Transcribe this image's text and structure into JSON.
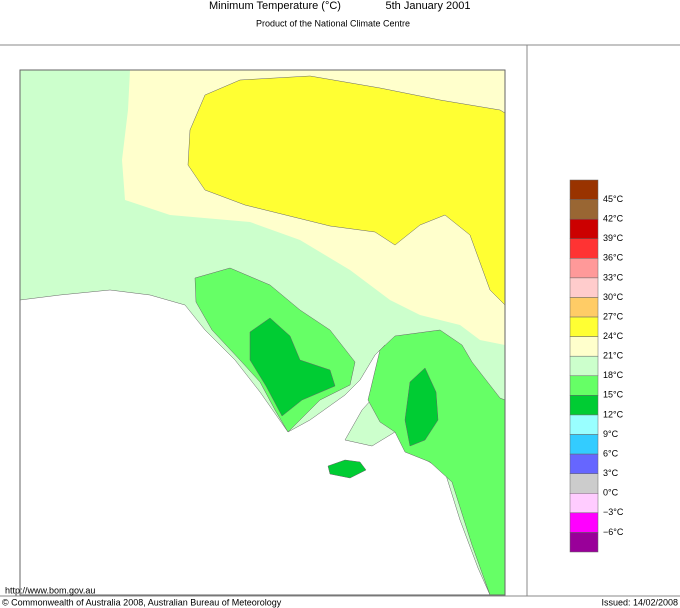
{
  "header": {
    "title": "Minimum Temperature (°C)",
    "date": "5th January 2001",
    "subtitle": "Product of the National Climate Centre"
  },
  "legend": {
    "colors": [
      "#993300",
      "#996633",
      "#cc0000",
      "#ff3333",
      "#ff9999",
      "#ffcccc",
      "#ffcc66",
      "#ffff33",
      "#ffffcc",
      "#ccffcc",
      "#66ff66",
      "#00cc33",
      "#99ffff",
      "#33ccff",
      "#6666ff",
      "#cccccc",
      "#ffccff",
      "#ff00ff",
      "#990099"
    ],
    "labels": [
      "45°C",
      "42°C",
      "39°C",
      "36°C",
      "33°C",
      "30°C",
      "27°C",
      "24°C",
      "21°C",
      "18°C",
      "15°C",
      "12°C",
      "9°C",
      "6°C",
      "3°C",
      "0°C",
      "−3°C",
      "−6°C"
    ]
  },
  "footer": {
    "url": "http://www.bom.gov.au",
    "copyright": "© Commonwealth of Australia 2008, Australian Bureau of Meteorology",
    "issued": "Issued: 14/02/2008"
  }
}
